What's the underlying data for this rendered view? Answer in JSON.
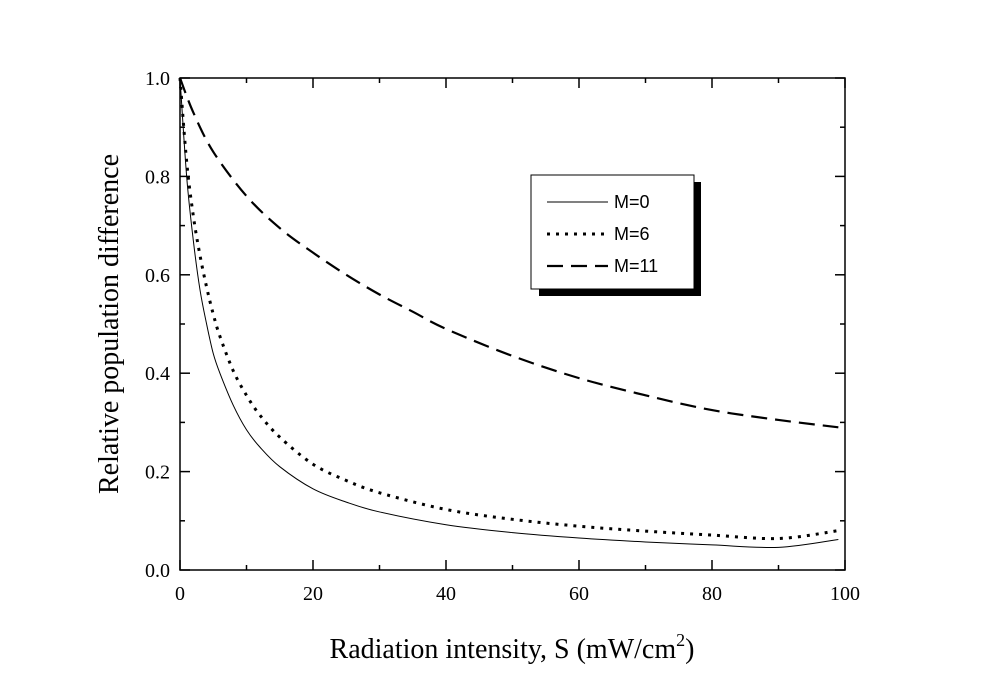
{
  "chart_data": {
    "type": "line",
    "title": "",
    "xlabel": "Radiation intensity, S (mW/cm",
    "xlabel_sup": "2",
    "xlabel_close": ")",
    "ylabel": "Relative population difference",
    "xlim": [
      0,
      100
    ],
    "ylim": [
      0.0,
      1.0
    ],
    "xticks": [
      0,
      20,
      40,
      60,
      80,
      100
    ],
    "xtick_labels": [
      "0",
      "20",
      "40",
      "60",
      "80",
      "100"
    ],
    "yticks": [
      0.0,
      0.2,
      0.4,
      0.6,
      0.8,
      1.0
    ],
    "ytick_labels": [
      "0.0",
      "0.2",
      "0.4",
      "0.6",
      "0.8",
      "1.0"
    ],
    "grid": false,
    "legend_position": "top-right",
    "series": [
      {
        "name": "M=0",
        "style": "solid",
        "x": [
          0,
          1,
          2,
          3,
          4,
          5,
          6,
          8,
          10,
          12,
          15,
          20,
          25,
          30,
          40,
          50,
          60,
          70,
          80,
          90,
          99
        ],
        "y": [
          1.0,
          0.8,
          0.67,
          0.57,
          0.5,
          0.44,
          0.4,
          0.335,
          0.285,
          0.25,
          0.21,
          0.165,
          0.138,
          0.118,
          0.092,
          0.076,
          0.065,
          0.057,
          0.051,
          0.046,
          0.062
        ]
      },
      {
        "name": "M=6",
        "style": "dotted",
        "x": [
          0,
          1,
          2,
          3,
          4,
          5,
          6,
          8,
          10,
          12,
          15,
          20,
          25,
          30,
          40,
          50,
          60,
          70,
          80,
          90,
          99
        ],
        "y": [
          1.0,
          0.83,
          0.72,
          0.64,
          0.575,
          0.52,
          0.475,
          0.405,
          0.355,
          0.315,
          0.27,
          0.215,
          0.182,
          0.157,
          0.123,
          0.103,
          0.089,
          0.079,
          0.071,
          0.064,
          0.08
        ]
      },
      {
        "name": "M=11",
        "style": "dashed",
        "x": [
          0,
          2,
          5,
          10,
          15,
          20,
          25,
          30,
          35,
          40,
          50,
          60,
          70,
          80,
          90,
          99
        ],
        "y": [
          1.0,
          0.93,
          0.85,
          0.76,
          0.695,
          0.645,
          0.6,
          0.56,
          0.525,
          0.49,
          0.435,
          0.39,
          0.355,
          0.325,
          0.305,
          0.29
        ]
      }
    ]
  },
  "colors": {
    "line": "#000000",
    "background": "#ffffff",
    "legend_shadow": "#000000"
  }
}
